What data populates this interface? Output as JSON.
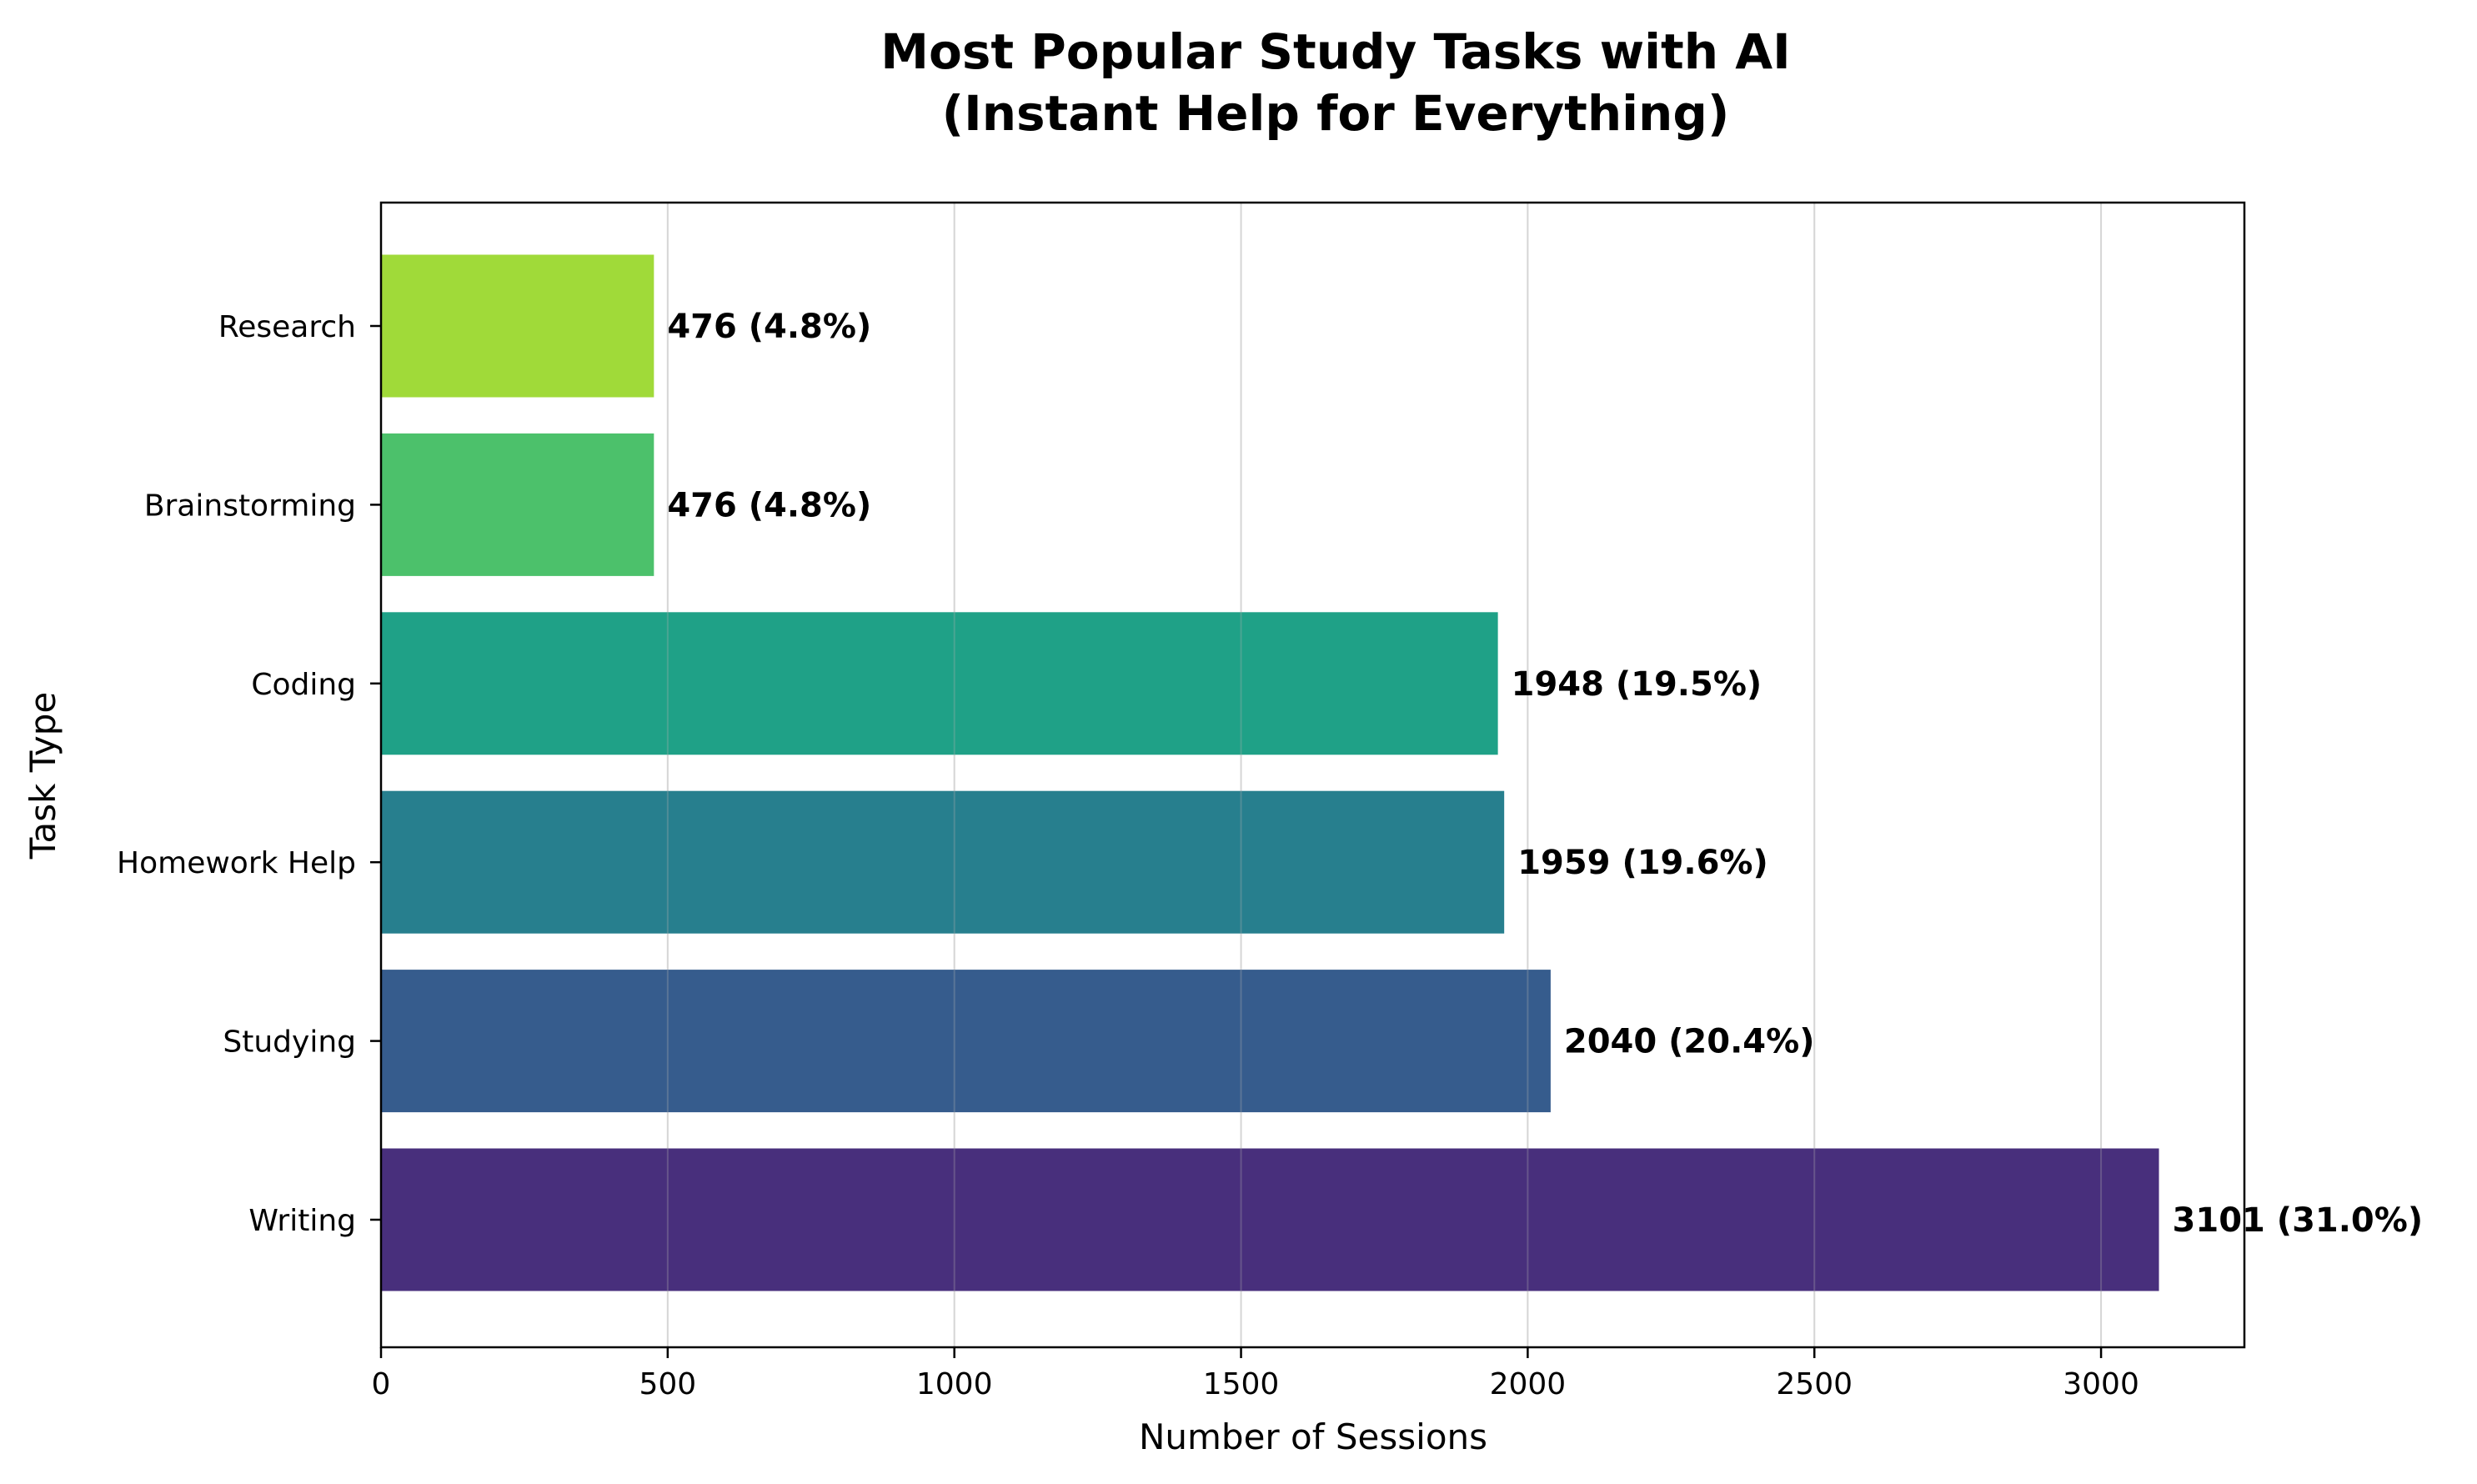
{
  "chart_data": {
    "type": "bar",
    "orientation": "horizontal",
    "title_lines": [
      "Most Popular Study Tasks with AI",
      "(Instant Help for Everything)"
    ],
    "xlabel": "Number of Sessions",
    "ylabel": "Task Type",
    "xlim": [
      0,
      3250
    ],
    "xticks": [
      0,
      500,
      1000,
      1500,
      2000,
      2500,
      3000
    ],
    "xtick_labels": [
      "0",
      "500",
      "1000",
      "1500",
      "2000",
      "2500",
      "3000"
    ],
    "grid": "vertical",
    "categories": [
      "Writing",
      "Studying",
      "Homework Help",
      "Coding",
      "Brainstorming",
      "Research"
    ],
    "values": [
      3101,
      2040,
      1959,
      1948,
      476,
      476
    ],
    "data_labels": [
      "3101 (31.0%)",
      "2040 (20.4%)",
      "1959 (19.6%)",
      "1948 (19.5%)",
      "476 (4.8%)",
      "476 (4.8%)"
    ],
    "colors": [
      "#482f7c",
      "#365c8d",
      "#277f8e",
      "#1fa187",
      "#4cc16b",
      "#a0da39"
    ]
  }
}
